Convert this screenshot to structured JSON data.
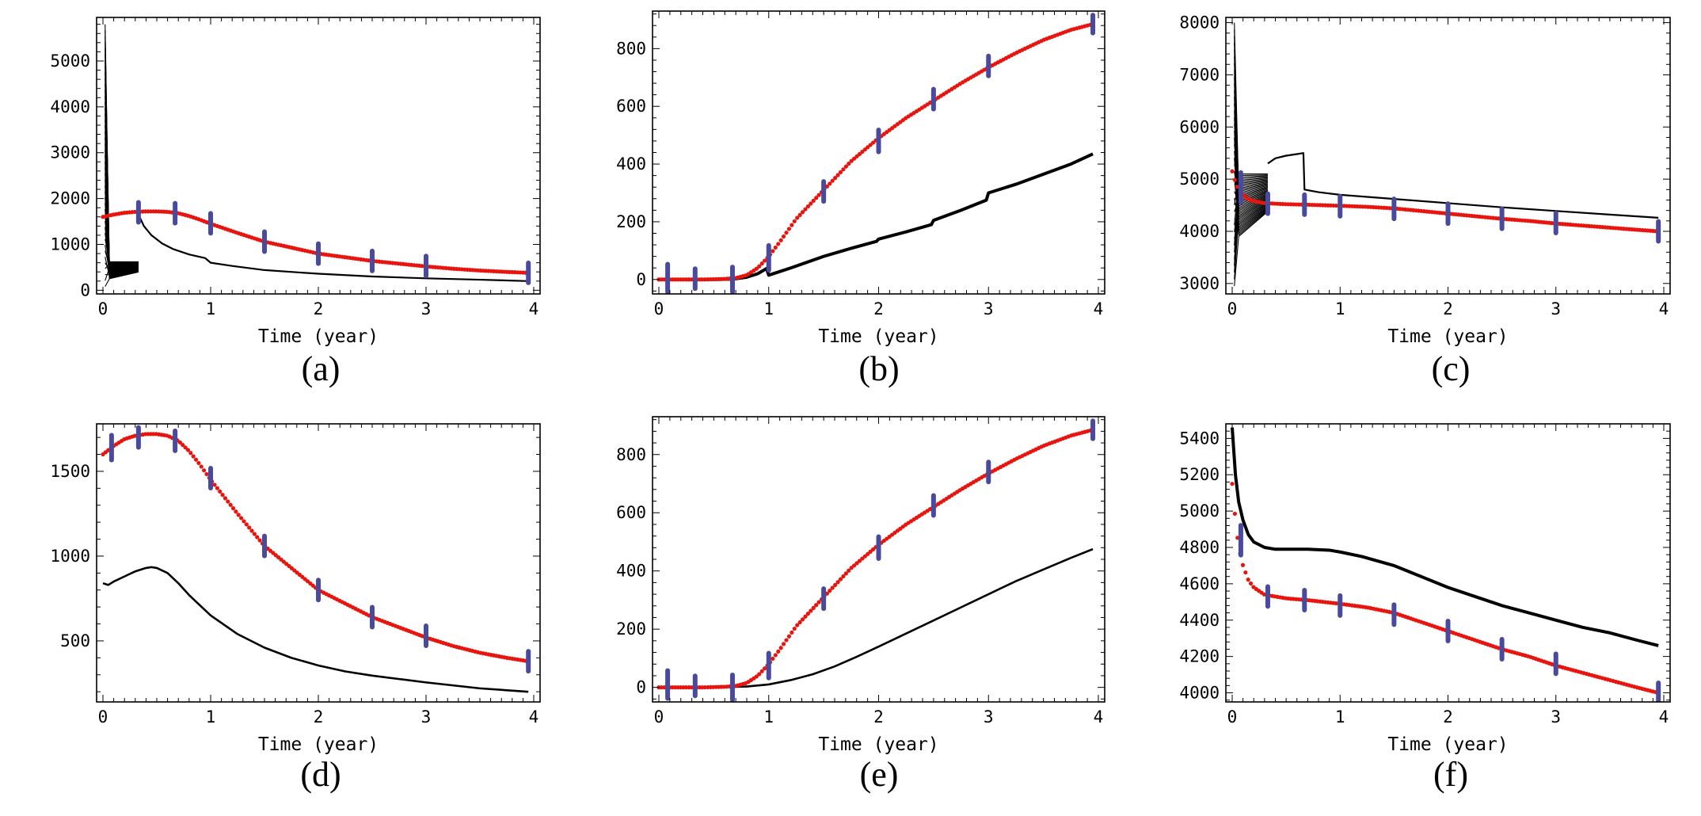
{
  "figure": {
    "xlabel": "Time (year)"
  },
  "colors": {
    "fit": "#e8150f",
    "data": "#4a4a9c",
    "sim": "#000000"
  },
  "chart_data": [
    {
      "id": "a",
      "caption": "(a)",
      "type": "line",
      "xlabel": "Time (year)",
      "xlim": [
        0,
        4
      ],
      "ylim": [
        -80,
        5950
      ],
      "xticks": [
        0,
        1,
        2,
        3,
        4
      ],
      "yticks": [
        0,
        1000,
        2000,
        3000,
        4000,
        5000
      ],
      "fit": {
        "x": [
          0,
          0.1,
          0.2,
          0.3,
          0.4,
          0.5,
          0.6,
          0.7,
          0.8,
          0.9,
          1.0,
          1.25,
          1.5,
          1.75,
          2.0,
          2.25,
          2.5,
          2.75,
          3.0,
          3.25,
          3.5,
          3.75,
          3.95
        ],
        "y": [
          1600,
          1650,
          1690,
          1710,
          1720,
          1720,
          1710,
          1680,
          1620,
          1540,
          1450,
          1250,
          1060,
          930,
          800,
          720,
          640,
          580,
          520,
          470,
          430,
          400,
          380
        ]
      },
      "observations": {
        "x": [
          0.33,
          0.67,
          1.0,
          1.5,
          2.0,
          2.5,
          3.0,
          3.95
        ],
        "y": [
          1700,
          1680,
          1460,
          1060,
          800,
          640,
          530,
          380
        ],
        "halfwidth": [
          20,
          20,
          20,
          20,
          20,
          20,
          20,
          20
        ]
      },
      "simulation": {
        "count": 45,
        "main": {
          "x": [
            0.33,
            0.38,
            0.45,
            0.55,
            0.65,
            0.8,
            0.95,
            1.0,
            1.2,
            1.5,
            2.0,
            2.5,
            3.0,
            3.5,
            3.95
          ],
          "y": [
            1650,
            1400,
            1200,
            1020,
            900,
            780,
            700,
            600,
            530,
            440,
            360,
            300,
            260,
            230,
            200
          ]
        },
        "burst": {
          "x0": 0.02,
          "x1": 0.06,
          "x2": 0.33,
          "ymin": 80,
          "ymax": 5800,
          "tail_min": 250,
          "tail_max": 620
        }
      }
    },
    {
      "id": "b",
      "caption": "(b)",
      "type": "line",
      "xlabel": "Time (year)",
      "xlim": [
        0,
        4
      ],
      "ylim": [
        -50,
        930
      ],
      "xticks": [
        0,
        1,
        2,
        3,
        4
      ],
      "yticks": [
        0,
        200,
        400,
        600,
        800
      ],
      "fit": {
        "x": [
          0,
          0.2,
          0.4,
          0.6,
          0.7,
          0.8,
          0.9,
          1.0,
          1.1,
          1.25,
          1.5,
          1.75,
          2.0,
          2.25,
          2.5,
          2.75,
          3.0,
          3.25,
          3.5,
          3.75,
          3.95
        ],
        "y": [
          0,
          0,
          0,
          2,
          5,
          15,
          40,
          80,
          130,
          210,
          310,
          410,
          490,
          560,
          620,
          680,
          735,
          785,
          830,
          865,
          885
        ]
      },
      "observations": {
        "x": [
          0.08,
          0.33,
          0.67,
          1.0,
          1.5,
          2.0,
          2.5,
          3.0,
          3.95
        ],
        "y": [
          5,
          3,
          0,
          75,
          305,
          480,
          625,
          740,
          885
        ],
        "halfwidth": [
          28,
          20,
          25,
          25,
          20,
          22,
          20,
          20,
          18
        ]
      },
      "simulation": {
        "count": 1,
        "linewidth": 4,
        "main": {
          "x": [
            0,
            0.5,
            0.67,
            0.8,
            0.9,
            0.98,
            1.0,
            1.2,
            1.5,
            1.75,
            1.98,
            2.0,
            2.25,
            2.48,
            2.5,
            2.75,
            2.98,
            3.0,
            3.25,
            3.5,
            3.75,
            3.95
          ],
          "y": [
            0,
            0,
            1,
            8,
            20,
            38,
            15,
            40,
            80,
            108,
            132,
            140,
            165,
            190,
            205,
            240,
            275,
            300,
            330,
            365,
            400,
            435
          ]
        }
      }
    },
    {
      "id": "c",
      "caption": "(c)",
      "type": "line",
      "xlabel": "Time (year)",
      "xlim": [
        0,
        4
      ],
      "ylim": [
        2800,
        8100
      ],
      "xticks": [
        0,
        1,
        2,
        3,
        4
      ],
      "yticks": [
        3000,
        4000,
        5000,
        6000,
        7000,
        8000
      ],
      "fit": {
        "x": [
          0,
          0.03,
          0.06,
          0.1,
          0.15,
          0.2,
          0.3,
          0.5,
          0.7,
          1.0,
          1.25,
          1.5,
          1.75,
          2.0,
          2.25,
          2.5,
          2.75,
          3.0,
          3.25,
          3.5,
          3.75,
          3.95
        ],
        "y": [
          5150,
          4950,
          4800,
          4700,
          4620,
          4580,
          4540,
          4520,
          4510,
          4490,
          4470,
          4440,
          4390,
          4340,
          4290,
          4240,
          4200,
          4150,
          4110,
          4070,
          4030,
          4000
        ]
      },
      "observations": {
        "x": [
          0.08,
          0.33,
          0.67,
          1.0,
          1.5,
          2.0,
          2.5,
          3.0,
          3.95
        ],
        "y": [
          4840,
          4530,
          4510,
          4480,
          4430,
          4340,
          4240,
          4160,
          4000
        ],
        "halfwidth": [
          30,
          20,
          20,
          20,
          20,
          20,
          20,
          20,
          20
        ]
      },
      "simulation": {
        "count": 40,
        "main": {
          "x": [
            0.33,
            0.4,
            0.5,
            0.6,
            0.66,
            0.67,
            0.8,
            1.0,
            1.5,
            2.0,
            2.5,
            3.0,
            3.5,
            3.95
          ],
          "y": [
            5300,
            5400,
            5450,
            5480,
            5500,
            4800,
            4750,
            4700,
            4620,
            4540,
            4460,
            4390,
            4320,
            4260
          ]
        },
        "burst": {
          "x0": 0.02,
          "x1": 0.06,
          "x2": 0.33,
          "ymin": 2950,
          "ymax": 8000,
          "tail_min": 3900,
          "tail_max": 5100
        }
      }
    },
    {
      "id": "d",
      "caption": "(d)",
      "type": "line",
      "xlabel": "Time (year)",
      "xlim": [
        0,
        4
      ],
      "ylim": [
        140,
        1780
      ],
      "xticks": [
        0,
        1,
        2,
        3,
        4
      ],
      "yticks": [
        500,
        1000,
        1500
      ],
      "fit": {
        "x": [
          0,
          0.1,
          0.2,
          0.3,
          0.4,
          0.5,
          0.6,
          0.7,
          0.8,
          0.9,
          1.0,
          1.25,
          1.5,
          1.75,
          2.0,
          2.25,
          2.5,
          2.75,
          3.0,
          3.25,
          3.5,
          3.75,
          3.95
        ],
        "y": [
          1600,
          1650,
          1690,
          1710,
          1720,
          1720,
          1710,
          1680,
          1620,
          1540,
          1450,
          1250,
          1060,
          930,
          800,
          720,
          640,
          580,
          520,
          470,
          430,
          400,
          380
        ]
      },
      "observations": {
        "x": [
          0.08,
          0.33,
          0.67,
          1.0,
          1.5,
          2.0,
          2.5,
          3.0,
          3.95
        ],
        "y": [
          1640,
          1700,
          1680,
          1460,
          1060,
          800,
          640,
          530,
          380
        ],
        "halfwidth": [
          25,
          20,
          20,
          20,
          20,
          20,
          20,
          20,
          20
        ]
      },
      "simulation": {
        "count": 1,
        "linewidth": 2.6,
        "main": {
          "x": [
            0,
            0.05,
            0.1,
            0.2,
            0.3,
            0.4,
            0.45,
            0.5,
            0.6,
            0.7,
            0.8,
            1.0,
            1.25,
            1.5,
            1.75,
            2.0,
            2.25,
            2.5,
            2.75,
            3.0,
            3.5,
            3.95
          ],
          "y": [
            840,
            830,
            850,
            880,
            910,
            930,
            935,
            930,
            900,
            840,
            770,
            650,
            540,
            460,
            400,
            355,
            320,
            295,
            275,
            255,
            220,
            200
          ]
        }
      }
    },
    {
      "id": "e",
      "caption": "(e)",
      "type": "line",
      "xlabel": "Time (year)",
      "xlim": [
        0,
        4
      ],
      "ylim": [
        -50,
        930
      ],
      "xticks": [
        0,
        1,
        2,
        3,
        4
      ],
      "yticks": [
        0,
        200,
        400,
        600,
        800
      ],
      "fit": {
        "x": [
          0,
          0.2,
          0.4,
          0.6,
          0.7,
          0.8,
          0.9,
          1.0,
          1.1,
          1.25,
          1.5,
          1.75,
          2.0,
          2.25,
          2.5,
          2.75,
          3.0,
          3.25,
          3.5,
          3.75,
          3.95
        ],
        "y": [
          0,
          0,
          0,
          2,
          5,
          15,
          40,
          80,
          130,
          210,
          310,
          410,
          490,
          560,
          620,
          680,
          735,
          785,
          830,
          865,
          885
        ]
      },
      "observations": {
        "x": [
          0.08,
          0.33,
          0.67,
          1.0,
          1.5,
          2.0,
          2.5,
          3.0,
          3.95
        ],
        "y": [
          10,
          5,
          0,
          75,
          305,
          480,
          625,
          740,
          885
        ],
        "halfwidth": [
          28,
          20,
          25,
          25,
          20,
          22,
          20,
          20,
          18
        ]
      },
      "simulation": {
        "count": 1,
        "linewidth": 2.6,
        "main": {
          "x": [
            0,
            0.5,
            0.8,
            1.0,
            1.2,
            1.4,
            1.6,
            1.8,
            2.0,
            2.25,
            2.5,
            2.75,
            3.0,
            3.25,
            3.5,
            3.75,
            3.95
          ],
          "y": [
            0,
            0,
            3,
            10,
            25,
            45,
            72,
            105,
            140,
            185,
            230,
            275,
            320,
            365,
            405,
            445,
            475
          ]
        }
      }
    },
    {
      "id": "f",
      "caption": "(f)",
      "type": "line",
      "xlabel": "Time (year)",
      "xlim": [
        0,
        4
      ],
      "ylim": [
        3950,
        5480
      ],
      "xticks": [
        0,
        1,
        2,
        3,
        4
      ],
      "yticks": [
        4000,
        4200,
        4400,
        4600,
        4800,
        5000,
        5200,
        5400
      ],
      "fit": {
        "x": [
          0,
          0.03,
          0.06,
          0.1,
          0.15,
          0.2,
          0.3,
          0.5,
          0.7,
          1.0,
          1.25,
          1.5,
          1.75,
          2.0,
          2.25,
          2.5,
          2.75,
          3.0,
          3.25,
          3.5,
          3.75,
          3.95
        ],
        "y": [
          5150,
          4950,
          4800,
          4700,
          4620,
          4580,
          4540,
          4520,
          4510,
          4490,
          4470,
          4440,
          4390,
          4340,
          4290,
          4240,
          4200,
          4150,
          4110,
          4070,
          4030,
          4000
        ]
      },
      "observations": {
        "x": [
          0.08,
          0.33,
          0.67,
          1.0,
          1.5,
          2.0,
          2.5,
          3.0,
          3.95
        ],
        "y": [
          4840,
          4530,
          4510,
          4480,
          4430,
          4340,
          4240,
          4160,
          4000
        ],
        "halfwidth": [
          30,
          20,
          20,
          20,
          20,
          20,
          20,
          20,
          20
        ]
      },
      "simulation": {
        "count": 1,
        "linewidth": 4,
        "main": {
          "x": [
            0,
            0.03,
            0.06,
            0.1,
            0.15,
            0.2,
            0.3,
            0.4,
            0.5,
            0.7,
            0.9,
            1.0,
            1.2,
            1.5,
            1.75,
            2.0,
            2.25,
            2.5,
            2.75,
            3.0,
            3.25,
            3.5,
            3.75,
            3.95
          ],
          "y": [
            5460,
            5200,
            5050,
            4950,
            4870,
            4830,
            4800,
            4790,
            4790,
            4790,
            4785,
            4775,
            4750,
            4700,
            4640,
            4580,
            4530,
            4480,
            4440,
            4400,
            4360,
            4330,
            4290,
            4260
          ]
        }
      }
    }
  ]
}
